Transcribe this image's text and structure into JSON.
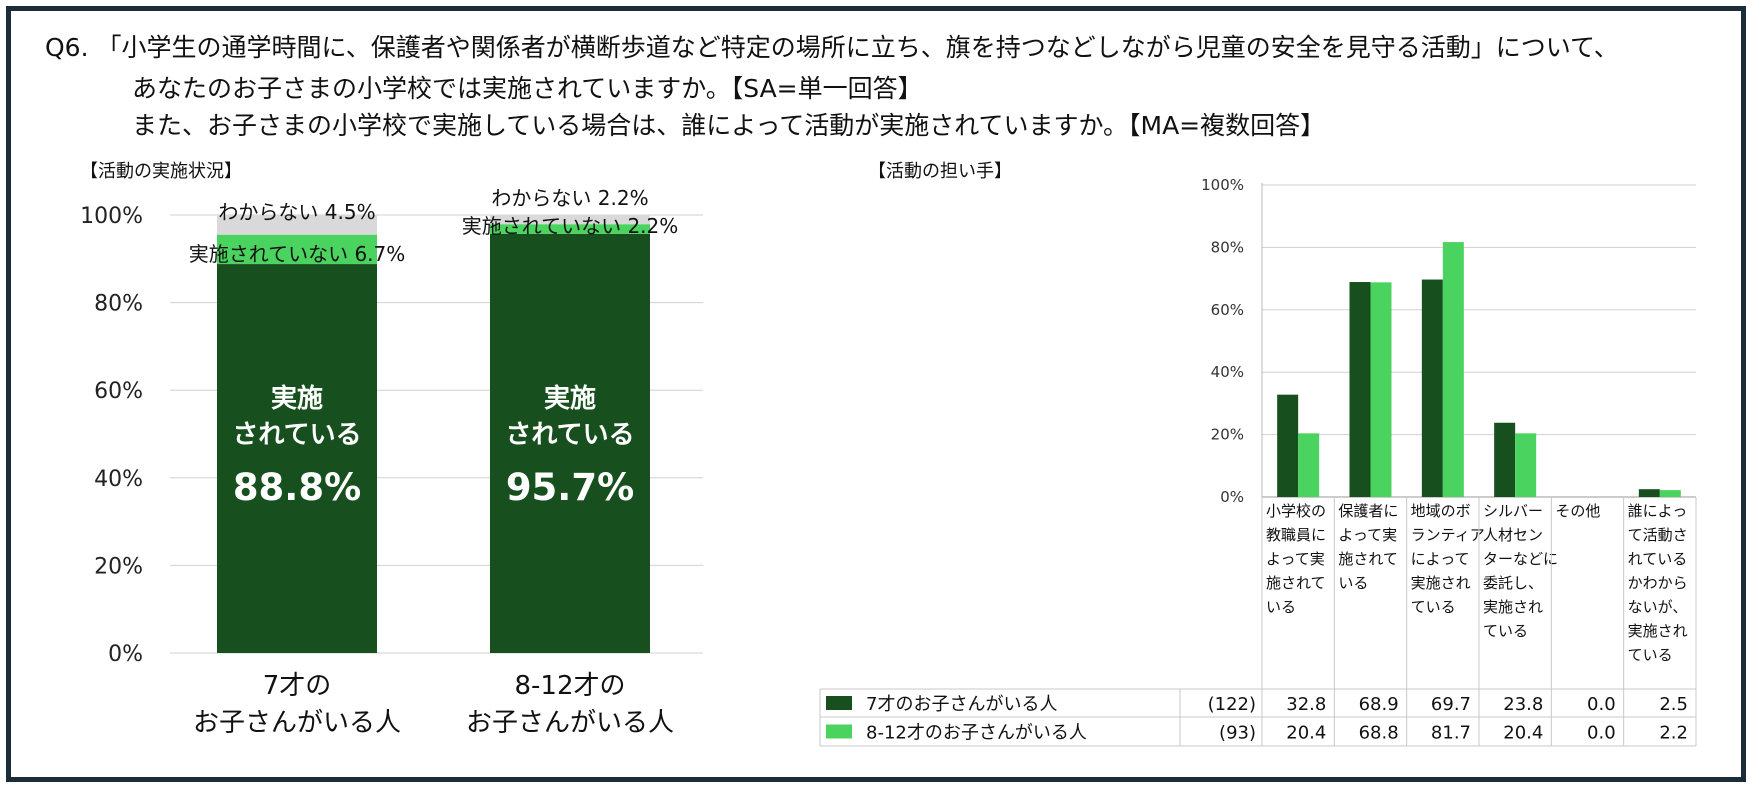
{
  "question": {
    "line1": "Q6. 「小学生の通学時間に、保護者や関係者が横断歩道など特定の場所に立ち、旗を持つなどしながら児童の安全を見守る活動」について、",
    "line2": "あなたのお子さまの小学校では実施されていますか。【SA=単一回答】",
    "line3": "また、お子さまの小学校で実施している場合は、誰によって活動が実施されていますか。【MA=複数回答】"
  },
  "left_title": "【活動の実施状況】",
  "right_title": "【活動の担い手】",
  "colors": {
    "dark": "#17501e",
    "light": "#4bd35f",
    "gray": "#d9d9d9",
    "grid": "#d0d0d0",
    "frame": "#1c2d3a"
  },
  "chart_data": [
    {
      "type": "bar",
      "stacked": true,
      "percent": true,
      "categories": [
        "7才の\nお子さんがいる人",
        "8-12才の\nお子さんがいる人"
      ],
      "series": [
        {
          "name": "実施されている",
          "values": [
            88.8,
            95.7
          ]
        },
        {
          "name": "実施されていない",
          "values": [
            6.7,
            2.2
          ]
        },
        {
          "name": "わからない",
          "values": [
            4.5,
            2.2
          ]
        }
      ],
      "inner_label": [
        "実施",
        "されている"
      ],
      "value_labels": {
        "done": [
          "88.8%",
          "95.7%"
        ],
        "not": [
          "実施されていない 6.7%",
          "実施されていない 2.2%"
        ],
        "unknown": [
          "わからない 4.5%",
          "わからない 2.2%"
        ]
      },
      "yticks": [
        "0%",
        "20%",
        "40%",
        "60%",
        "80%",
        "100%"
      ],
      "ylim": [
        0,
        100
      ]
    },
    {
      "type": "bar",
      "categories": [
        [
          "小学校の",
          "教職員に",
          "よって実",
          "施されて",
          "いる"
        ],
        [
          "保護者に",
          "よって実",
          "施されて",
          "いる"
        ],
        [
          "地域のボ",
          "ランティア",
          "によって",
          "実施され",
          "ている"
        ],
        [
          "シルバー",
          "人材セン",
          "ターなどに",
          "委託し、",
          "実施され",
          "ている"
        ],
        [
          "その他"
        ],
        [
          "誰によっ",
          "て活動さ",
          "れている",
          "かわから",
          "ないが、",
          "実施され",
          "ている"
        ]
      ],
      "series": [
        {
          "name": "7才のお子さんがいる人",
          "n": "(122)",
          "values": [
            32.8,
            68.9,
            69.7,
            23.8,
            0.0,
            2.5
          ],
          "labels": [
            "32.8",
            "68.9",
            "69.7",
            "23.8",
            "0.0",
            "2.5"
          ]
        },
        {
          "name": "8-12才のお子さんがいる人",
          "n": "(93)",
          "values": [
            20.4,
            68.8,
            81.7,
            20.4,
            0.0,
            2.2
          ],
          "labels": [
            "20.4",
            "68.8",
            "81.7",
            "20.4",
            "0.0",
            "2.2"
          ]
        }
      ],
      "yticks": [
        "0%",
        "20%",
        "40%",
        "60%",
        "80%",
        "100%"
      ],
      "ylim": [
        0,
        100
      ]
    }
  ]
}
